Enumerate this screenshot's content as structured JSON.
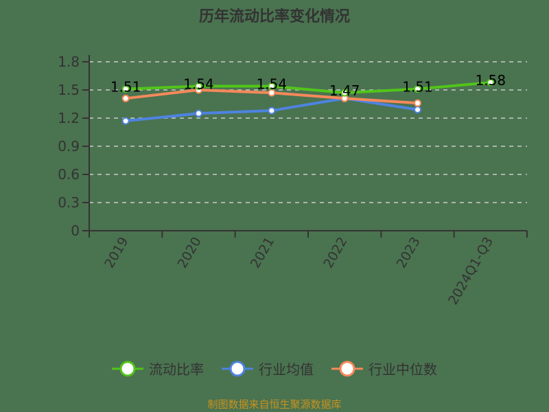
{
  "title": "历年流动比率变化情况",
  "footer": "制图数据来自恒生聚源数据库",
  "colors": {
    "background": "#4a7350",
    "current_ratio": "#52c41a",
    "industry_mean": "#4e83e0",
    "industry_median": "#f5895a",
    "grid": "#cccccc",
    "axis": "#333333",
    "footer": "#c8921e"
  },
  "legend": [
    {
      "label": "流动比率",
      "color": "#52c41a"
    },
    {
      "label": "行业均值",
      "color": "#4e83e0"
    },
    {
      "label": "行业中位数",
      "color": "#f5895a"
    }
  ],
  "chart_data": {
    "type": "line",
    "title": "历年流动比率变化情况",
    "xlabel": "",
    "ylabel": "",
    "categories": [
      "2019",
      "2020",
      "2021",
      "2022",
      "2023",
      "2024Q1-Q3"
    ],
    "yticks": [
      "0",
      "0.3",
      "0.6",
      "0.9",
      "1.2",
      "1.5",
      "1.8"
    ],
    "ylim": [
      0,
      1.8
    ],
    "grid": true,
    "legend_position": "bottom",
    "series": [
      {
        "name": "流动比率",
        "values": [
          1.51,
          1.54,
          1.54,
          1.47,
          1.51,
          1.58
        ],
        "labels": [
          "1.51",
          "1.54",
          "1.54",
          "1.47",
          "1.51",
          "1.58"
        ]
      },
      {
        "name": "行业均值",
        "values": [
          1.17,
          1.25,
          1.28,
          1.41,
          1.29,
          null
        ]
      },
      {
        "name": "行业中位数",
        "values": [
          1.41,
          1.5,
          1.47,
          1.41,
          1.36,
          null
        ]
      }
    ]
  }
}
